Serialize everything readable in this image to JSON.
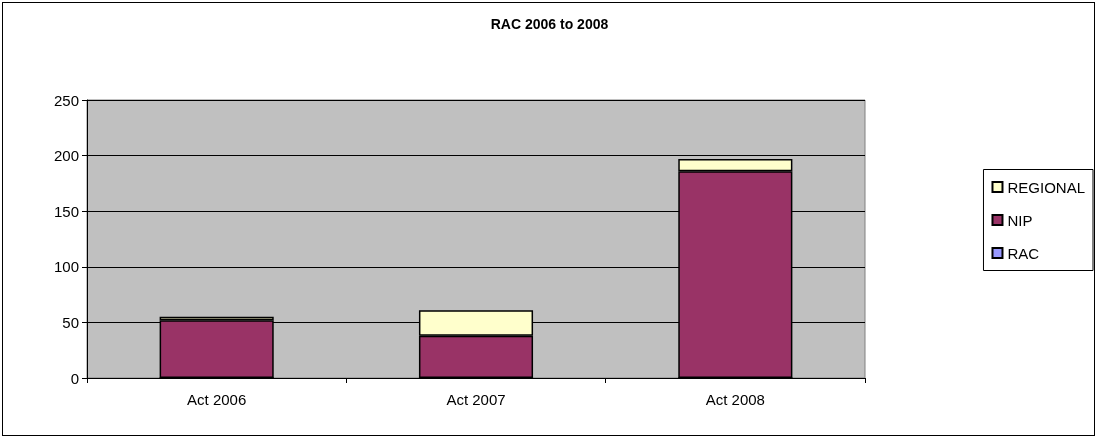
{
  "chart_data": {
    "type": "bar",
    "title": "RAC 2006 to 2008",
    "categories": [
      "Act 2006",
      "Act 2007",
      "Act 2008"
    ],
    "stacked": true,
    "series": [
      {
        "name": "RAC",
        "color": "#9999ff",
        "values": [
          0,
          0,
          0
        ]
      },
      {
        "name": "NIP",
        "color": "#993366",
        "values": [
          52,
          38,
          186
        ]
      },
      {
        "name": "REGIONAL",
        "color": "#ffffcc",
        "values": [
          3,
          23,
          11
        ]
      }
    ],
    "ylim": [
      0,
      250
    ],
    "yticks": [
      0,
      50,
      100,
      150,
      200,
      250
    ],
    "grid": "y",
    "legend": "right"
  }
}
